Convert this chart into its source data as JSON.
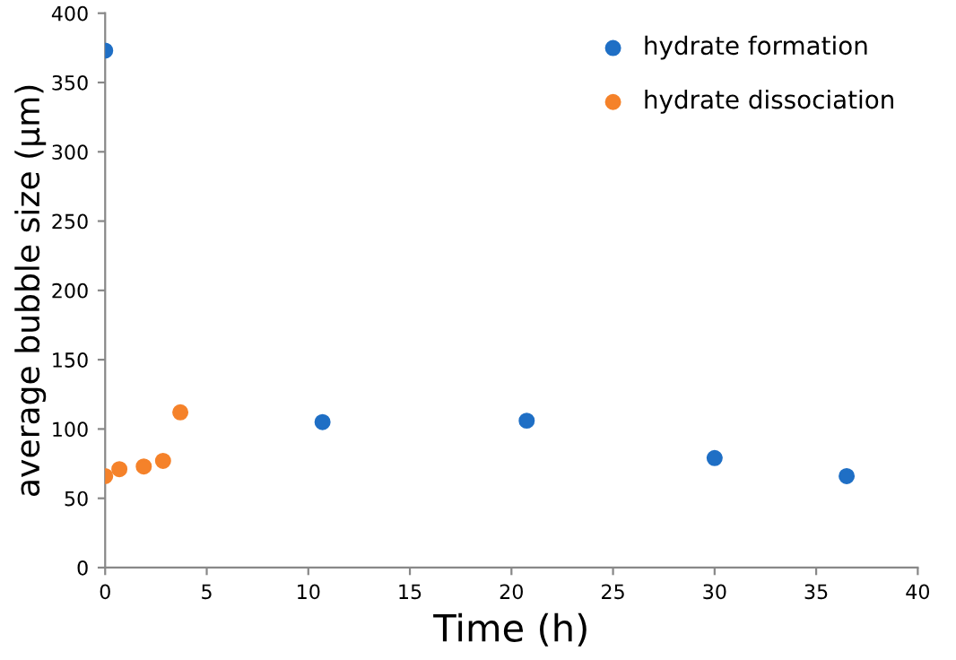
{
  "chart_data": {
    "type": "scatter",
    "xlabel": "Time (h)",
    "ylabel": "average bubble size (µm)",
    "xlim": [
      0,
      40
    ],
    "xticks": [
      0,
      5,
      10,
      15,
      20,
      25,
      30,
      35,
      40
    ],
    "ylim": [
      0,
      400
    ],
    "yticks": [
      0,
      50,
      100,
      150,
      200,
      250,
      300,
      350,
      400
    ],
    "grid": false,
    "legend": "top right",
    "marker": "circle",
    "series": [
      {
        "name": "hydrate formation",
        "color": "#1f6fc5",
        "x": [
          0,
          10.7,
          20.75,
          30,
          36.5
        ],
        "values": [
          373,
          105,
          106,
          79,
          66
        ]
      },
      {
        "name": "hydrate dissociation",
        "color": "#f5822a",
        "x": [
          0,
          0.7,
          1.9,
          2.85,
          3.7
        ],
        "values": [
          66,
          71,
          73,
          77,
          112
        ]
      }
    ]
  }
}
